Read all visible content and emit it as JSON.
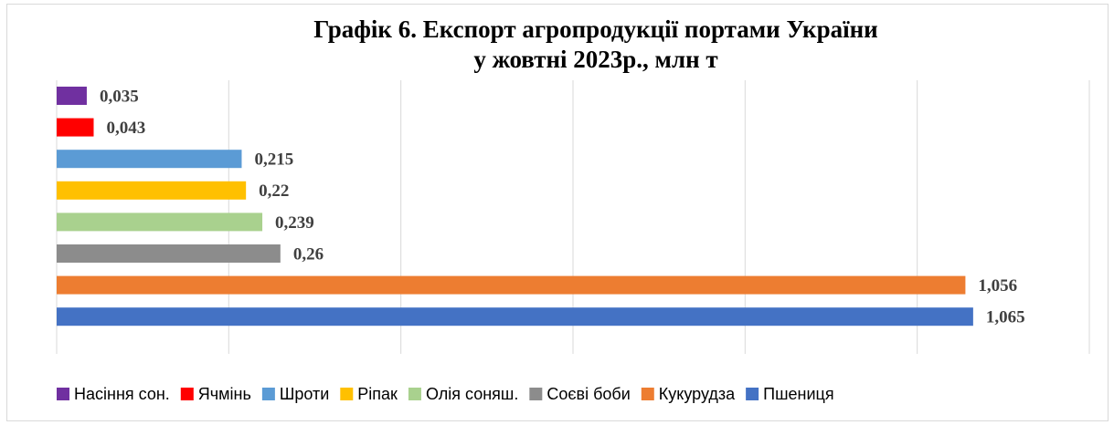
{
  "chart_data": {
    "type": "hbar",
    "title": [
      "Графік 6.  Експорт агропродукції портами України",
      "у жовтні 2023р., млн т"
    ],
    "series": [
      {
        "name": "Насіння сон.",
        "color": "#7030a0",
        "values": [
          0.035
        ],
        "value_labels": [
          "0,035"
        ]
      },
      {
        "name": "Ячмінь",
        "color": "#ff0000",
        "values": [
          0.043
        ],
        "value_labels": [
          "0,043"
        ]
      },
      {
        "name": "Шроти",
        "color": "#5b9bd5",
        "values": [
          0.215
        ],
        "value_labels": [
          "0,215"
        ]
      },
      {
        "name": "Ріпак",
        "color": "#ffc000",
        "values": [
          0.22
        ],
        "value_labels": [
          "0,22"
        ]
      },
      {
        "name": "Олія соняш.",
        "color": "#a9d18e",
        "values": [
          0.239
        ],
        "value_labels": [
          "0,239"
        ]
      },
      {
        "name": "Соєві боби",
        "color": "#8c8c8c",
        "values": [
          0.26
        ],
        "value_labels": [
          "0,26"
        ]
      },
      {
        "name": "Кукурудза",
        "color": "#ed7d31",
        "values": [
          1.056
        ],
        "value_labels": [
          "1,056"
        ]
      },
      {
        "name": "Пшениця",
        "color": "#4472c4",
        "values": [
          1.065
        ],
        "value_labels": [
          "1,065"
        ]
      }
    ],
    "xlim": [
      0,
      1.2
    ],
    "xticks": [
      0,
      0.2,
      0.4,
      0.6,
      0.8,
      1,
      1.2
    ],
    "grid": true,
    "legend": "bottom"
  }
}
